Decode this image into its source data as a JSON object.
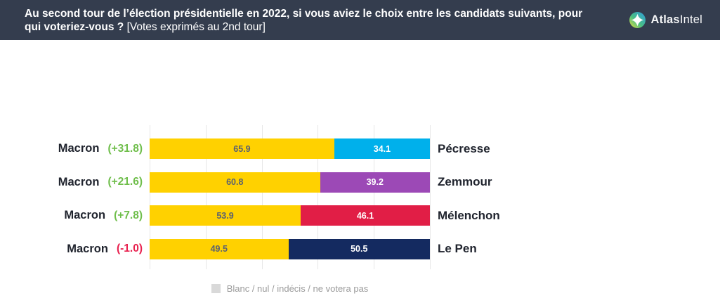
{
  "header": {
    "question_bold": "Au second tour de l’élection présidentielle en 2022, si vous aviez le choix entre les candidats suivants, pour qui voteriez-vous ?",
    "question_note": "[Votes exprimés au 2nd tour]",
    "logo": {
      "bold": "Atlas",
      "regular": "Intel"
    }
  },
  "chart_data": {
    "type": "bar",
    "orientation": "horizontal",
    "stacked": true,
    "unit": "%",
    "axis_range": [
      0,
      100
    ],
    "gridlines": [
      0,
      20,
      40,
      60,
      80,
      100
    ],
    "rows": [
      {
        "left_label": "Macron",
        "diff_label": "(+31.8)",
        "diff_color": "#6FBE4B",
        "left_value": "65.9",
        "right_value": "34.1",
        "right_label": "Pécresse",
        "left_color": "#FFD100",
        "right_color": "#00B0EB"
      },
      {
        "left_label": "Macron",
        "diff_label": "(+21.6)",
        "diff_color": "#6FBE4B",
        "left_value": "60.8",
        "right_value": "39.2",
        "right_label": "Zemmour",
        "left_color": "#FFD100",
        "right_color": "#9C49B6"
      },
      {
        "left_label": "Macron",
        "diff_label": "(+7.8)",
        "diff_color": "#6FBE4B",
        "left_value": "53.9",
        "right_value": "46.1",
        "right_label": "Mélenchon",
        "left_color": "#FFD100",
        "right_color": "#E11E46"
      },
      {
        "left_label": "Macron",
        "diff_label": "(-1.0)",
        "diff_color": "#E8204E",
        "left_value": "49.5",
        "right_value": "50.5",
        "right_label": "Le Pen",
        "left_color": "#FFD100",
        "right_color": "#142A60"
      }
    ],
    "legend": {
      "label": "Blanc / nul / indécis / ne votera pas",
      "swatch_color": "#D9D9D9"
    }
  },
  "colors": {
    "header_bg": "#343D4E",
    "gridline": "#E7E7E7",
    "value_on_yellow": "#5B6270",
    "value_on_color": "#FFFFFF",
    "label_text": "#20242E"
  }
}
